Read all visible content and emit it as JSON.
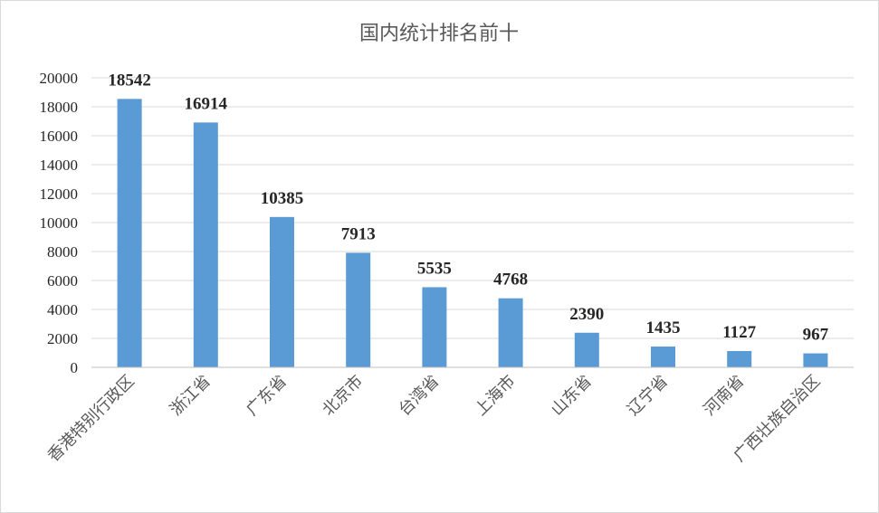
{
  "chart_data": {
    "type": "bar",
    "title": "国内统计排名前十",
    "categories": [
      "香港特别行政区",
      "浙江省",
      "广东省",
      "北京市",
      "台湾省",
      "上海市",
      "山东省",
      "辽宁省",
      "河南省",
      "广西壮族自治区"
    ],
    "values": [
      18542,
      16914,
      10385,
      7913,
      5535,
      4768,
      2390,
      1435,
      1127,
      967
    ],
    "data_labels": [
      "18542",
      "16914",
      "10385",
      "7913",
      "5535",
      "4768",
      "2390",
      "1435",
      "1127",
      "967"
    ],
    "yticks": [
      0,
      2000,
      4000,
      6000,
      8000,
      10000,
      12000,
      14000,
      16000,
      18000,
      20000
    ],
    "ylim": [
      0,
      20000
    ],
    "xlabel": "",
    "ylabel": "",
    "grid": true,
    "legend": "none",
    "bar_color": "#5b9bd5"
  }
}
